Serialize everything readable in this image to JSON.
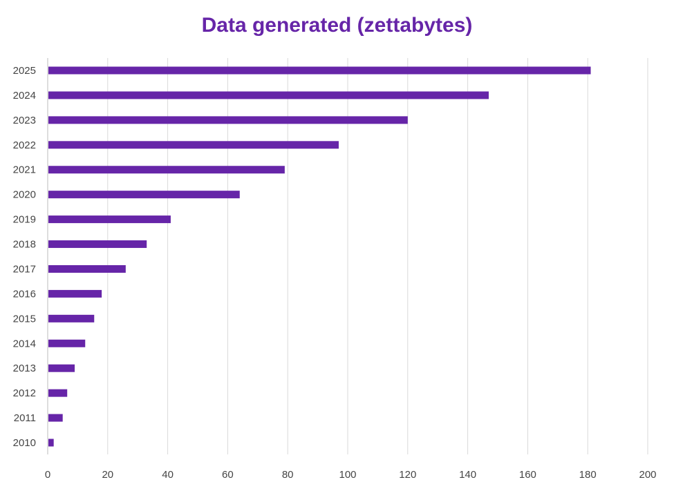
{
  "chart_data": {
    "type": "bar",
    "orientation": "horizontal",
    "title": "Data generated (zettabytes)",
    "xlabel": "",
    "ylabel": "",
    "categories": [
      "2010",
      "2011",
      "2012",
      "2013",
      "2014",
      "2015",
      "2016",
      "2017",
      "2018",
      "2019",
      "2020",
      "2021",
      "2022",
      "2023",
      "2024",
      "2025"
    ],
    "values": [
      2,
      5,
      6.5,
      9,
      12.5,
      15.5,
      18,
      26,
      33,
      41,
      64,
      79,
      97,
      120,
      147,
      181
    ],
    "xlim": [
      0,
      200
    ],
    "xticks": [
      0,
      20,
      40,
      60,
      80,
      100,
      120,
      140,
      160,
      180,
      200
    ],
    "grid": true,
    "legend": "none",
    "colors": {
      "bar": "#6625a8",
      "title": "#6625a8",
      "grid": "#d9d9d9"
    }
  }
}
